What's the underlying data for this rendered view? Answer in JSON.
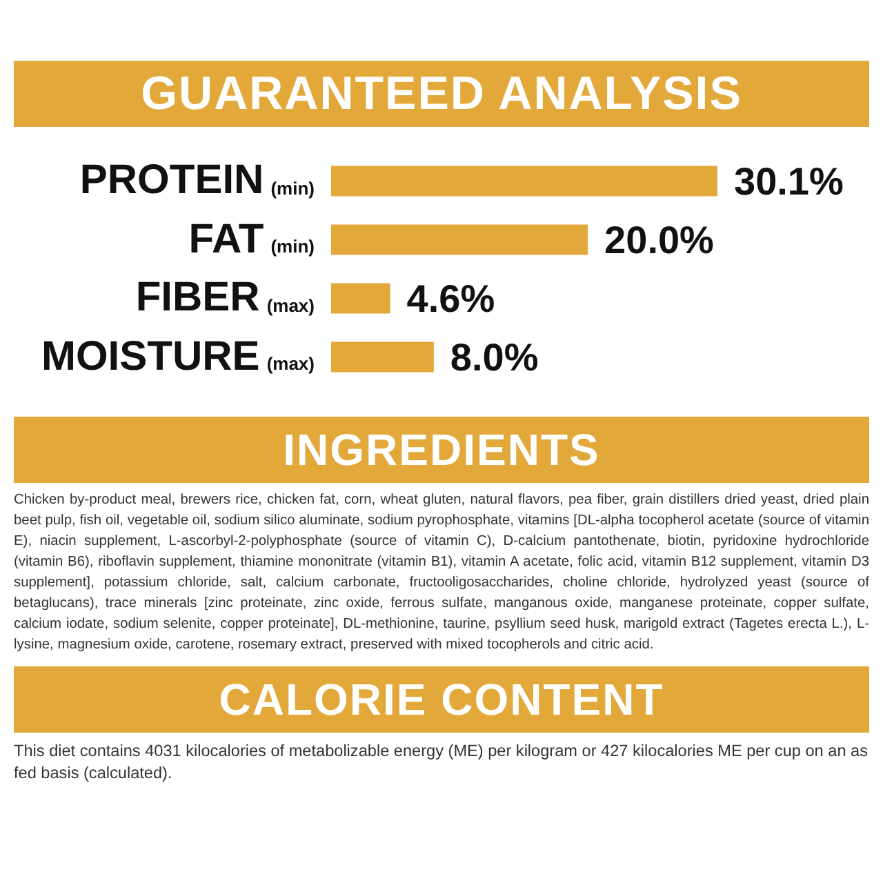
{
  "chart_data": {
    "type": "bar",
    "orientation": "horizontal",
    "title": "GUARANTEED ANALYSIS",
    "categories": [
      "PROTEIN (min)",
      "FAT (min)",
      "FIBER (max)",
      "MOISTURE (max)"
    ],
    "values": [
      30.1,
      20.0,
      4.6,
      8.0
    ],
    "value_labels": [
      "30.1%",
      "20.0%",
      "4.6%",
      "8.0%"
    ],
    "color": "#e3a83a",
    "annotations": [
      "INGREDIENTS",
      "Chicken by-product meal, brewers rice, chicken fat, corn, wheat gluten, natural flavors, pea fiber, grain distillers dried yeast, dried plain beet pulp, fish oil, vegetable oil, sodium silico aluminate, sodium pyrophosphate, vitamins [DL-alpha tocopherol acetate (source of vitamin E), niacin supplement, L-ascorbyl-2-polyphosphate (source of vitamin C), D-calcium pantothenate, biotin, pyridoxine hydrochloride (vitamin B6), riboflavin supplement, thiamine mononitrate (vitamin B1), vitamin A acetate, folic acid, vitamin B12 supplement, vitamin D3 supplement], potassium chloride, salt, calcium carbonate, fructooligosaccharides, choline chloride, hydrolyzed yeast (source of betaglucans), trace minerals [zinc proteinate, zinc oxide, ferrous sulfate, manganous oxide, manganese proteinate, copper sulfate, calcium iodate, sodium selenite, copper proteinate], DL-methionine, taurine, psyllium seed husk, marigold extract (Tagetes erecta L.), L-lysine, magnesium oxide, carotene, rosemary extract, preserved with mixed tocopherols and citric acid.",
      "CALORIE CONTENT",
      "This diet contains 4031 kilocalories of metabolizable energy (ME) per kilogram or 427 kilocalories ME per cup on an as fed basis (calculated)."
    ]
  }
}
